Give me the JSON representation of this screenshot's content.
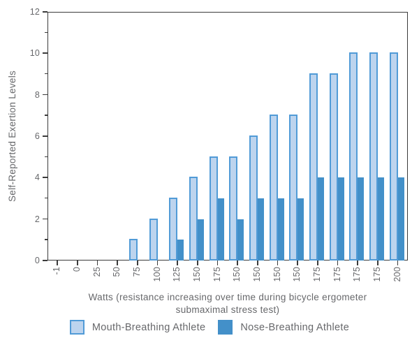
{
  "figure": {
    "background": "#ffffff",
    "text_color": "#67686b",
    "axis_color": "#3b3b3b"
  },
  "chart_data": {
    "type": "bar",
    "title": "",
    "xlabel": "Watts (resistance increasing over time during bicycle ergometer submaximal stress test)",
    "xlabel_lines": [
      "Watts (resistance increasing over time during bicycle ergometer",
      "submaximal stress test)"
    ],
    "ylabel": "Self-Reported Exertion Levels",
    "ylim": [
      0,
      12
    ],
    "y_major_ticks": [
      0,
      2,
      4,
      6,
      8,
      10,
      12
    ],
    "y_minor_ticks": [
      1,
      3,
      5,
      7,
      9,
      11
    ],
    "grid": false,
    "legend_position": "bottom",
    "categories": [
      "-1",
      "0",
      "25",
      "50",
      "75",
      "100",
      "125",
      "150",
      "175",
      "150",
      "150",
      "150",
      "150",
      "175",
      "175",
      "175",
      "175",
      "200"
    ],
    "series": [
      {
        "name": "Mouth-Breathing Athlete",
        "fill": "#bdd4ee",
        "edge": "#519bd7",
        "values": [
          0,
          0,
          0,
          0,
          1,
          2,
          3,
          4,
          5,
          5,
          6,
          7,
          7,
          9,
          9,
          10,
          10,
          10
        ]
      },
      {
        "name": "Nose-Breathing Athlete",
        "fill": "#4390c9",
        "edge": "#4390c9",
        "values": [
          0,
          0,
          0,
          0,
          0,
          0,
          1,
          2,
          3,
          2,
          3,
          3,
          3,
          4,
          4,
          4,
          4,
          4
        ]
      }
    ]
  }
}
